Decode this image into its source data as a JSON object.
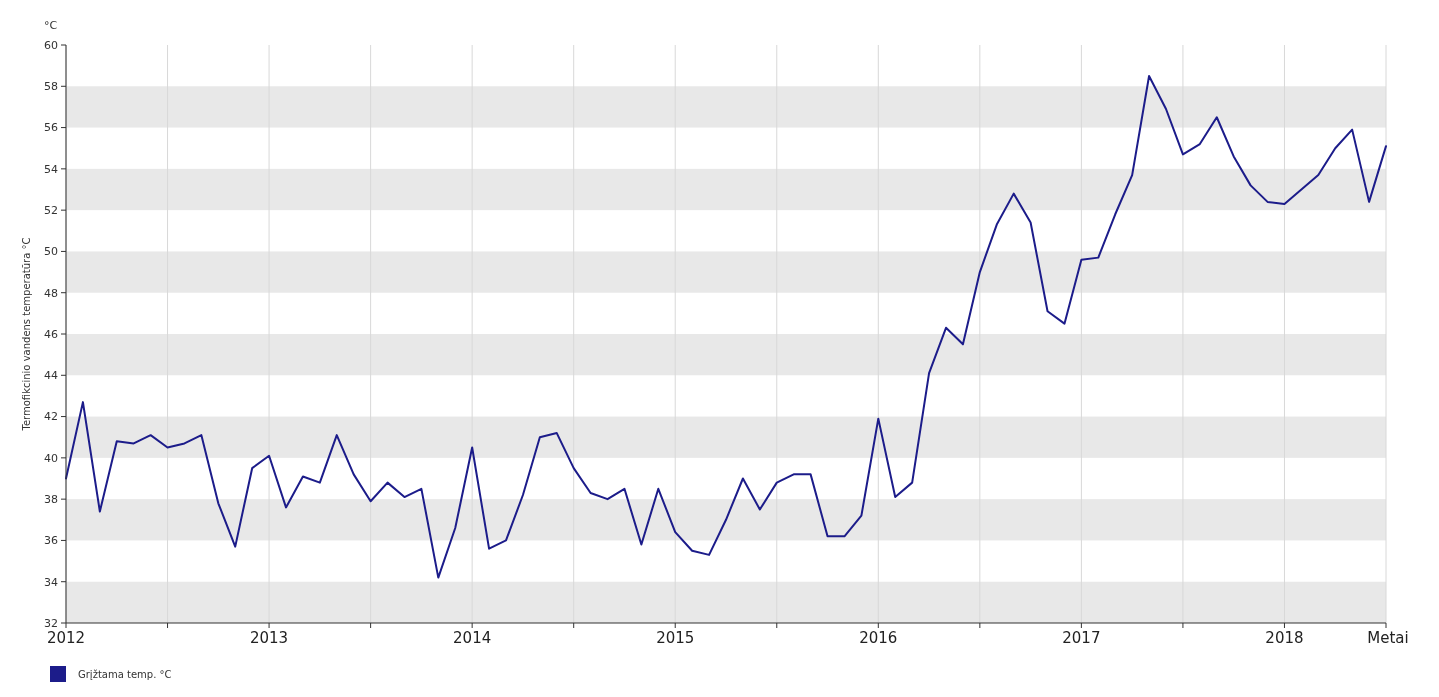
{
  "chart_data": {
    "type": "line",
    "ylabel": "Termofikcinio vandens temperatūra °C",
    "xlabel": "Metai",
    "annotations": [
      "°C"
    ],
    "x": [
      2012,
      2012.0833,
      2012.1667,
      2012.25,
      2012.3333,
      2012.4167,
      2012.5,
      2012.5833,
      2012.6667,
      2012.75,
      2012.8333,
      2012.9167,
      2013,
      2013.0833,
      2013.1667,
      2013.25,
      2013.3333,
      2013.4167,
      2013.5,
      2013.5833,
      2013.6667,
      2013.75,
      2013.8333,
      2013.9167,
      2014,
      2014.0833,
      2014.1667,
      2014.25,
      2014.3333,
      2014.4167,
      2014.5,
      2014.5833,
      2014.6667,
      2014.75,
      2014.8333,
      2014.9167,
      2015,
      2015.0833,
      2015.1667,
      2015.25,
      2015.3333,
      2015.4167,
      2015.5,
      2015.5833,
      2015.6667,
      2015.75,
      2015.8333,
      2015.9167,
      2016,
      2016.0833,
      2016.1667,
      2016.25,
      2016.3333,
      2016.4167,
      2016.5,
      2016.5833,
      2016.6667,
      2016.75,
      2016.8333,
      2016.9167,
      2017,
      2017.0833,
      2017.1667,
      2017.25,
      2017.3333,
      2017.4167,
      2017.5,
      2017.5833,
      2017.6667,
      2017.75,
      2017.8333,
      2017.9167,
      2018,
      2018.0833,
      2018.1667,
      2018.25,
      2018.3333,
      2018.4167,
      2018.5
    ],
    "series": [
      {
        "name": "Grįžtama temp. °C",
        "color": "#1c1c8a",
        "values": [
          39.0,
          42.7,
          37.4,
          40.8,
          40.7,
          41.1,
          40.5,
          40.7,
          41.1,
          37.8,
          35.7,
          39.5,
          40.1,
          37.6,
          39.1,
          38.8,
          41.1,
          39.2,
          37.9,
          38.8,
          38.1,
          38.5,
          34.2,
          36.6,
          40.5,
          35.6,
          36.0,
          38.2,
          41.0,
          41.2,
          39.5,
          38.3,
          38.0,
          38.5,
          35.8,
          38.5,
          36.4,
          35.5,
          35.3,
          37.0,
          39.0,
          37.5,
          38.8,
          39.2,
          39.2,
          36.2,
          36.2,
          37.2,
          41.9,
          38.1,
          38.8,
          44.1,
          46.3,
          45.5,
          49.0,
          51.3,
          52.8,
          51.4,
          47.1,
          46.5,
          49.6,
          49.7,
          51.8,
          53.7,
          58.5,
          56.9,
          54.7,
          55.2,
          56.5,
          54.6,
          53.2,
          52.4,
          52.3,
          53.0,
          53.7,
          55.0,
          55.9,
          52.4,
          55.1
        ]
      }
    ],
    "xlim": [
      2012,
      2018.5
    ],
    "xticks": [
      2012,
      {
        "value": 2012.5,
        "label": null
      },
      2013,
      {
        "value": 2013.5,
        "label": null
      },
      2014,
      {
        "value": 2014.5,
        "label": null
      },
      2015,
      {
        "value": 2015.5,
        "label": null
      },
      2016,
      {
        "value": 2016.5,
        "label": null
      },
      2017,
      {
        "value": 2017.5,
        "label": null
      },
      2018,
      {
        "value": 2018.5,
        "label": null
      }
    ],
    "ylim": [
      32,
      60
    ],
    "yticks": [
      32,
      34,
      36,
      38,
      40,
      42,
      44,
      46,
      48,
      50,
      52,
      54,
      56,
      58,
      60
    ],
    "grid": "x",
    "legend": "bottom left",
    "marker": "none",
    "line_style": "solid",
    "bands": [
      {
        "axis": "y",
        "from": 32,
        "to": 34,
        "color": "#e8e8e8"
      },
      {
        "axis": "y",
        "from": 36,
        "to": 38,
        "color": "#e8e8e8"
      },
      {
        "axis": "y",
        "from": 40,
        "to": 42,
        "color": "#e8e8e8"
      },
      {
        "axis": "y",
        "from": 44,
        "to": 46,
        "color": "#e8e8e8"
      },
      {
        "axis": "y",
        "from": 48,
        "to": 50,
        "color": "#e8e8e8"
      },
      {
        "axis": "y",
        "from": 52,
        "to": 54,
        "color": "#e8e8e8"
      },
      {
        "axis": "y",
        "from": 56,
        "to": 58,
        "color": "#e8e8e8"
      }
    ]
  }
}
